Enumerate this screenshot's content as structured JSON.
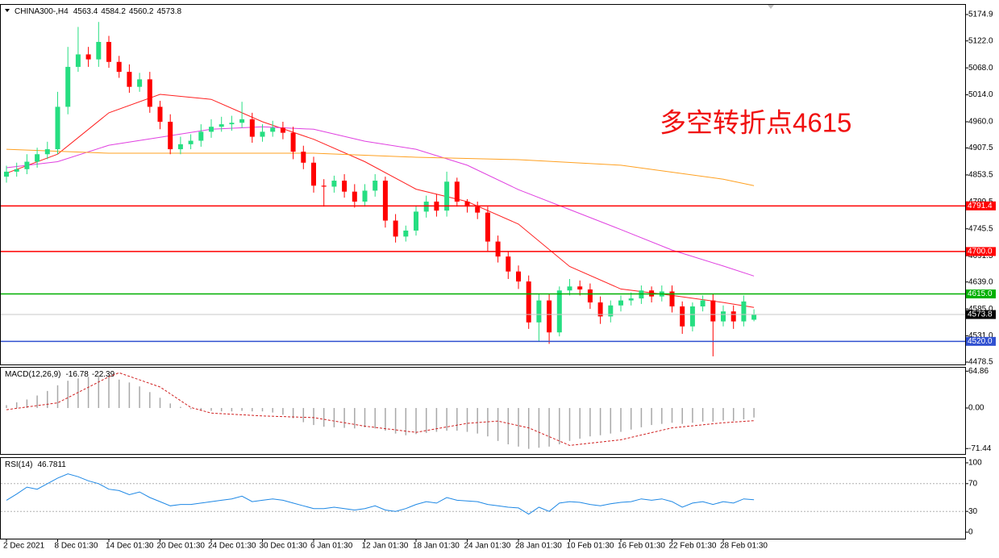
{
  "chart_data": [
    {
      "type": "candlestick",
      "title": "CHINA300-,H4",
      "header_values": [
        4563.4,
        4584.2,
        4560.2,
        4573.8
      ],
      "annotation": "多空转折点4615",
      "up_color": "#26de81",
      "down_color": "#ff0000",
      "categories": [
        "2 Dec 2021",
        null,
        null,
        null,
        null,
        "8 Dec 01:30",
        null,
        null,
        null,
        null,
        "14 Dec 01:30",
        null,
        null,
        null,
        null,
        "20 Dec 01:30",
        null,
        null,
        null,
        null,
        "24 Dec 01:30",
        null,
        null,
        null,
        null,
        "30 Dec 01:30",
        null,
        null,
        null,
        null,
        "6 Jan 01:30",
        null,
        null,
        null,
        null,
        "12 Jan 01:30",
        null,
        null,
        null,
        null,
        "18 Jan 01:30",
        null,
        null,
        null,
        null,
        "24 Jan 01:30",
        null,
        null,
        null,
        null,
        "28 Jan 01:30",
        null,
        null,
        null,
        null,
        "10 Feb 01:30",
        null,
        null,
        null,
        null,
        "16 Feb 01:30",
        null,
        null,
        null,
        null,
        "22 Feb 01:30",
        null,
        null,
        null,
        null,
        "28 Feb 01:30",
        null,
        null,
        null
      ],
      "open": [
        4850,
        4860,
        4865,
        4880,
        4895,
        4905,
        4990,
        5070,
        5095,
        5085,
        5120,
        5080,
        5060,
        5030,
        5045,
        4990,
        4960,
        4905,
        4915,
        4922,
        4940,
        4950,
        4955,
        4958,
        4965,
        4930,
        4940,
        4948,
        4938,
        4900,
        4878,
        4832,
        4830,
        4842,
        4820,
        4800,
        4822,
        4842,
        4762,
        4730,
        4742,
        4780,
        4800,
        4782,
        4840,
        4800,
        4790,
        4778,
        4720,
        4690,
        4660,
        4640,
        4558,
        4602,
        4538,
        4622,
        4630,
        4624,
        4598,
        4570,
        4592,
        4602,
        4606,
        4622,
        4610,
        4620,
        4590,
        4550,
        4590,
        4602,
        4560,
        4580,
        4560,
        4563.4
      ],
      "high": [
        4872,
        4878,
        4895,
        4908,
        4920,
        5020,
        5110,
        5150,
        5110,
        5160,
        5132,
        5092,
        5075,
        5058,
        5060,
        5002,
        4975,
        4930,
        4935,
        4955,
        4965,
        4970,
        4972,
        5000,
        4978,
        4955,
        4962,
        4960,
        4950,
        4912,
        4890,
        4845,
        4852,
        4855,
        4835,
        4835,
        4855,
        4850,
        4775,
        4752,
        4792,
        4812,
        4815,
        4860,
        4848,
        4805,
        4800,
        4790,
        4732,
        4700,
        4672,
        4652,
        4615,
        4615,
        4630,
        4645,
        4642,
        4636,
        4610,
        4602,
        4612,
        4618,
        4632,
        4630,
        4632,
        4632,
        4600,
        4598,
        4612,
        4615,
        4592,
        4592,
        4612,
        4584.2
      ],
      "low": [
        4838,
        4850,
        4855,
        4868,
        4885,
        4895,
        4975,
        5060,
        5070,
        5070,
        5068,
        5048,
        5018,
        5020,
        4978,
        4945,
        4895,
        4895,
        4905,
        4910,
        4928,
        4940,
        4942,
        4948,
        4918,
        4920,
        4930,
        4925,
        4885,
        4865,
        4818,
        4790,
        4818,
        4808,
        4788,
        4790,
        4810,
        4748,
        4718,
        4720,
        4732,
        4768,
        4770,
        4770,
        4790,
        4778,
        4765,
        4700,
        4678,
        4645,
        4625,
        4545,
        4520,
        4515,
        4530,
        4612,
        4612,
        4585,
        4555,
        4558,
        4580,
        4592,
        4595,
        4598,
        4600,
        4578,
        4535,
        4540,
        4580,
        4490,
        4550,
        4545,
        4550,
        4560.2
      ],
      "close": [
        4860,
        4865,
        4880,
        4895,
        4905,
        4990,
        5070,
        5095,
        5085,
        5120,
        5080,
        5060,
        5030,
        5045,
        4990,
        4960,
        4905,
        4915,
        4922,
        4940,
        4950,
        4955,
        4958,
        4965,
        4930,
        4940,
        4948,
        4938,
        4900,
        4878,
        4832,
        4830,
        4842,
        4820,
        4800,
        4822,
        4842,
        4762,
        4730,
        4742,
        4780,
        4800,
        4782,
        4840,
        4800,
        4790,
        4778,
        4720,
        4690,
        4660,
        4640,
        4558,
        4602,
        4538,
        4622,
        4630,
        4624,
        4598,
        4570,
        4592,
        4602,
        4606,
        4622,
        4610,
        4620,
        4590,
        4550,
        4590,
        4602,
        4560,
        4580,
        4560,
        4600,
        4573.8
      ],
      "series": [
        {
          "color": "#ff2020",
          "x": [
            0,
            5,
            10,
            15,
            20,
            25,
            30,
            35,
            40,
            45,
            50,
            55,
            60,
            65,
            70,
            73
          ],
          "values": [
            4857,
            4895,
            4978,
            5015,
            5005,
            4960,
            4925,
            4880,
            4825,
            4800,
            4755,
            4670,
            4625,
            4612,
            4598,
            4588
          ]
        },
        {
          "color": "#e040e0",
          "x": [
            0,
            5,
            10,
            15,
            20,
            25,
            30,
            35,
            40,
            45,
            50,
            55,
            60,
            65,
            70,
            73
          ],
          "values": [
            4868,
            4880,
            4913,
            4929,
            4945,
            4950,
            4945,
            4921,
            4905,
            4873,
            4824,
            4784,
            4744,
            4703,
            4671,
            4651
          ]
        },
        {
          "color": "#ffa020",
          "x": [
            0,
            10,
            20,
            30,
            40,
            50,
            60,
            70,
            73
          ],
          "values": [
            4905,
            4897,
            4897,
            4897,
            4889,
            4884,
            4873,
            4845,
            4832
          ]
        }
      ],
      "levels": [
        {
          "value": 4791.4,
          "color": "#ff0000"
        },
        {
          "value": 4700,
          "label": "4700.0",
          "color": "#ff0000"
        },
        {
          "value": 4615,
          "label": "4615.0",
          "color": "#00b000"
        },
        {
          "value": 4520,
          "label": "4520.0",
          "color": "#3050d0"
        }
      ],
      "price_line": {
        "value": 4573.8,
        "color": "#c8c8c8"
      },
      "ylim": [
        4473.7,
        5195.9
      ],
      "yticks": [
        5174.9,
        {
          "value": 5122,
          "label": "5122.0"
        },
        {
          "value": 5068,
          "label": "5068.0"
        },
        {
          "value": 5014,
          "label": "5014.0"
        },
        {
          "value": 4960,
          "label": "4960.0"
        },
        4907.5,
        4853.5,
        4799.5,
        4745.5,
        4691.5,
        {
          "value": 4639,
          "label": "4639.0"
        },
        {
          "value": 4585,
          "label": "4585.0"
        },
        {
          "value": 4531,
          "label": "4531.0"
        },
        4478.5
      ]
    },
    {
      "type": "macd",
      "title": "MACD(12,26,9)",
      "header_values": [
        -16.78,
        -22.39
      ],
      "color": "#a8a8a8",
      "values": [
        5,
        10,
        15,
        22,
        30,
        40,
        48,
        52,
        55,
        57,
        55,
        50,
        45,
        38,
        28,
        18,
        8,
        2,
        -2,
        -4,
        -5,
        -6,
        -6,
        -5,
        -6,
        -6,
        -8,
        -12,
        -18,
        -25,
        -30,
        -33,
        -34,
        -35,
        -36,
        -34,
        -36,
        -40,
        -45,
        -48,
        -46,
        -44,
        -42,
        -40,
        -40,
        -42,
        -45,
        -50,
        -58,
        -64,
        -68,
        -72,
        -70,
        -68,
        -64,
        -58,
        -54,
        -50,
        -48,
        -45,
        -42,
        -38,
        -34,
        -30,
        -28,
        -26,
        -28,
        -26,
        -24,
        -24,
        -22,
        -23,
        -20,
        -16.78
      ],
      "signal": {
        "color": "#d02020",
        "x": [
          0,
          5,
          10,
          11,
          15,
          18,
          20,
          25,
          30,
          35,
          40,
          45,
          48,
          51,
          55,
          60,
          65,
          70,
          73
        ],
        "values": [
          -3,
          9,
          55,
          62,
          37,
          1,
          -9,
          -14,
          -17,
          -32,
          -43,
          -27,
          -23,
          -35,
          -66,
          -56,
          -35,
          -26,
          -22.39
        ]
      },
      "ylim": [
        -81,
        72.4
      ],
      "yticks": [
        64.86,
        {
          "value": 0,
          "label": "0.00"
        },
        -71.44
      ]
    },
    {
      "type": "line",
      "title": "RSI(14)",
      "header_values": [
        46.7811
      ],
      "color": "#1e88e5",
      "values": [
        46,
        55,
        65,
        62,
        70,
        78,
        84,
        80,
        74,
        70,
        62,
        60,
        54,
        58,
        50,
        44,
        38,
        40,
        40,
        42,
        44,
        46,
        48,
        52,
        44,
        46,
        48,
        46,
        42,
        38,
        34,
        34,
        36,
        34,
        32,
        34,
        38,
        32,
        30,
        34,
        40,
        44,
        42,
        50,
        46,
        45,
        44,
        40,
        38,
        36,
        35,
        26,
        36,
        30,
        42,
        44,
        43,
        40,
        38,
        41,
        43,
        44,
        48,
        46,
        48,
        44,
        36,
        42,
        44,
        40,
        44,
        42,
        48,
        46.7811
      ],
      "levels": [
        70,
        30
      ],
      "ylim": [
        -9.3,
        108.1
      ],
      "yticks": [
        100,
        70,
        30,
        0
      ]
    }
  ]
}
